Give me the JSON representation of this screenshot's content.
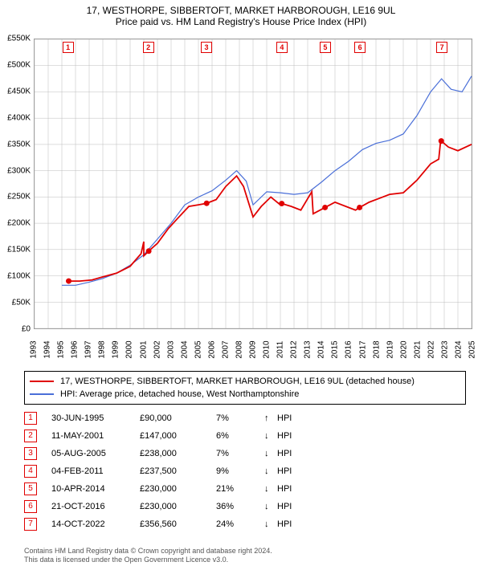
{
  "title_line1": "17, WESTHORPE, SIBBERTOFT, MARKET HARBOROUGH, LE16 9UL",
  "title_line2": "Price paid vs. HM Land Registry's House Price Index (HPI)",
  "chart": {
    "type": "line",
    "ylim": [
      0,
      550000
    ],
    "ytick_step": 50000,
    "yticks_labels": [
      "£0",
      "£50K",
      "£100K",
      "£150K",
      "£200K",
      "£250K",
      "£300K",
      "£350K",
      "£400K",
      "£450K",
      "£500K",
      "£550K"
    ],
    "x_years": [
      1993,
      1994,
      1995,
      1996,
      1997,
      1998,
      1999,
      2000,
      2001,
      2002,
      2003,
      2004,
      2005,
      2006,
      2007,
      2008,
      2009,
      2010,
      2011,
      2012,
      2013,
      2014,
      2015,
      2016,
      2017,
      2018,
      2019,
      2020,
      2021,
      2022,
      2023,
      2024,
      2025
    ],
    "red_color": "#e00000",
    "blue_color": "#4a6fd8",
    "grid_color": "#bbbbbb",
    "series_property": [
      {
        "x": 1995.5,
        "y": 90000
      },
      {
        "x": 1996.3,
        "y": 90000
      },
      {
        "x": 1997.2,
        "y": 92000
      },
      {
        "x": 1998.0,
        "y": 98000
      },
      {
        "x": 1999.0,
        "y": 105000
      },
      {
        "x": 2000.0,
        "y": 118000
      },
      {
        "x": 2000.8,
        "y": 142000
      },
      {
        "x": 2001.0,
        "y": 165000
      },
      {
        "x": 2001.0,
        "y": 138000
      },
      {
        "x": 2001.36,
        "y": 147000
      },
      {
        "x": 2002.0,
        "y": 162000
      },
      {
        "x": 2002.8,
        "y": 190000
      },
      {
        "x": 2003.5,
        "y": 210000
      },
      {
        "x": 2004.3,
        "y": 232000
      },
      {
        "x": 2005.0,
        "y": 235000
      },
      {
        "x": 2005.6,
        "y": 238000
      },
      {
        "x": 2006.3,
        "y": 245000
      },
      {
        "x": 2007.0,
        "y": 270000
      },
      {
        "x": 2007.8,
        "y": 290000
      },
      {
        "x": 2008.3,
        "y": 270000
      },
      {
        "x": 2009.0,
        "y": 212000
      },
      {
        "x": 2009.6,
        "y": 232000
      },
      {
        "x": 2010.3,
        "y": 250000
      },
      {
        "x": 2011.0,
        "y": 235000
      },
      {
        "x": 2011.1,
        "y": 237500
      },
      {
        "x": 2011.8,
        "y": 232000
      },
      {
        "x": 2012.5,
        "y": 225000
      },
      {
        "x": 2013.3,
        "y": 260000
      },
      {
        "x": 2013.4,
        "y": 218000
      },
      {
        "x": 2014.27,
        "y": 230000
      },
      {
        "x": 2015.0,
        "y": 240000
      },
      {
        "x": 2015.8,
        "y": 232000
      },
      {
        "x": 2016.5,
        "y": 225000
      },
      {
        "x": 2016.8,
        "y": 230000
      },
      {
        "x": 2017.5,
        "y": 240000
      },
      {
        "x": 2018.3,
        "y": 248000
      },
      {
        "x": 2019.0,
        "y": 255000
      },
      {
        "x": 2020.0,
        "y": 258000
      },
      {
        "x": 2021.0,
        "y": 282000
      },
      {
        "x": 2022.0,
        "y": 313000
      },
      {
        "x": 2022.6,
        "y": 322000
      },
      {
        "x": 2022.75,
        "y": 360000
      },
      {
        "x": 2022.78,
        "y": 356560
      },
      {
        "x": 2023.3,
        "y": 345000
      },
      {
        "x": 2024.0,
        "y": 338000
      },
      {
        "x": 2025.0,
        "y": 350000
      }
    ],
    "series_hpi": [
      {
        "x": 1995.0,
        "y": 82000
      },
      {
        "x": 1996.0,
        "y": 82000
      },
      {
        "x": 1997.0,
        "y": 88000
      },
      {
        "x": 1998.0,
        "y": 95000
      },
      {
        "x": 1999.0,
        "y": 105000
      },
      {
        "x": 2000.0,
        "y": 120000
      },
      {
        "x": 2001.0,
        "y": 140000
      },
      {
        "x": 2002.0,
        "y": 170000
      },
      {
        "x": 2003.0,
        "y": 200000
      },
      {
        "x": 2004.0,
        "y": 235000
      },
      {
        "x": 2005.0,
        "y": 250000
      },
      {
        "x": 2006.0,
        "y": 262000
      },
      {
        "x": 2007.0,
        "y": 282000
      },
      {
        "x": 2007.8,
        "y": 300000
      },
      {
        "x": 2008.5,
        "y": 280000
      },
      {
        "x": 2009.0,
        "y": 235000
      },
      {
        "x": 2010.0,
        "y": 260000
      },
      {
        "x": 2011.0,
        "y": 258000
      },
      {
        "x": 2012.0,
        "y": 255000
      },
      {
        "x": 2013.0,
        "y": 258000
      },
      {
        "x": 2014.0,
        "y": 278000
      },
      {
        "x": 2015.0,
        "y": 300000
      },
      {
        "x": 2016.0,
        "y": 318000
      },
      {
        "x": 2017.0,
        "y": 340000
      },
      {
        "x": 2018.0,
        "y": 352000
      },
      {
        "x": 2019.0,
        "y": 358000
      },
      {
        "x": 2020.0,
        "y": 370000
      },
      {
        "x": 2021.0,
        "y": 405000
      },
      {
        "x": 2022.0,
        "y": 450000
      },
      {
        "x": 2022.8,
        "y": 475000
      },
      {
        "x": 2023.5,
        "y": 455000
      },
      {
        "x": 2024.3,
        "y": 450000
      },
      {
        "x": 2025.0,
        "y": 480000
      }
    ],
    "sale_markers": [
      {
        "n": "1",
        "x": 1995.5,
        "y": 90000
      },
      {
        "n": "2",
        "x": 2001.36,
        "y": 147000
      },
      {
        "n": "3",
        "x": 2005.6,
        "y": 238000
      },
      {
        "n": "4",
        "x": 2011.1,
        "y": 237500
      },
      {
        "n": "5",
        "x": 2014.27,
        "y": 230000
      },
      {
        "n": "6",
        "x": 2016.8,
        "y": 230000
      },
      {
        "n": "7",
        "x": 2022.78,
        "y": 356560
      }
    ]
  },
  "legend": {
    "item1": "17, WESTHORPE, SIBBERTOFT, MARKET HARBOROUGH, LE16 9UL (detached house)",
    "item2": "HPI: Average price, detached house, West Northamptonshire"
  },
  "transactions": [
    {
      "n": "1",
      "date": "30-JUN-1995",
      "price": "£90,000",
      "pct": "7%",
      "arrow": "↑",
      "tag": "HPI"
    },
    {
      "n": "2",
      "date": "11-MAY-2001",
      "price": "£147,000",
      "pct": "6%",
      "arrow": "↓",
      "tag": "HPI"
    },
    {
      "n": "3",
      "date": "05-AUG-2005",
      "price": "£238,000",
      "pct": "7%",
      "arrow": "↓",
      "tag": "HPI"
    },
    {
      "n": "4",
      "date": "04-FEB-2011",
      "price": "£237,500",
      "pct": "9%",
      "arrow": "↓",
      "tag": "HPI"
    },
    {
      "n": "5",
      "date": "10-APR-2014",
      "price": "£230,000",
      "pct": "21%",
      "arrow": "↓",
      "tag": "HPI"
    },
    {
      "n": "6",
      "date": "21-OCT-2016",
      "price": "£230,000",
      "pct": "36%",
      "arrow": "↓",
      "tag": "HPI"
    },
    {
      "n": "7",
      "date": "14-OCT-2022",
      "price": "£356,560",
      "pct": "24%",
      "arrow": "↓",
      "tag": "HPI"
    }
  ],
  "footer_line1": "Contains HM Land Registry data © Crown copyright and database right 2024.",
  "footer_line2": "This data is licensed under the Open Government Licence v3.0."
}
